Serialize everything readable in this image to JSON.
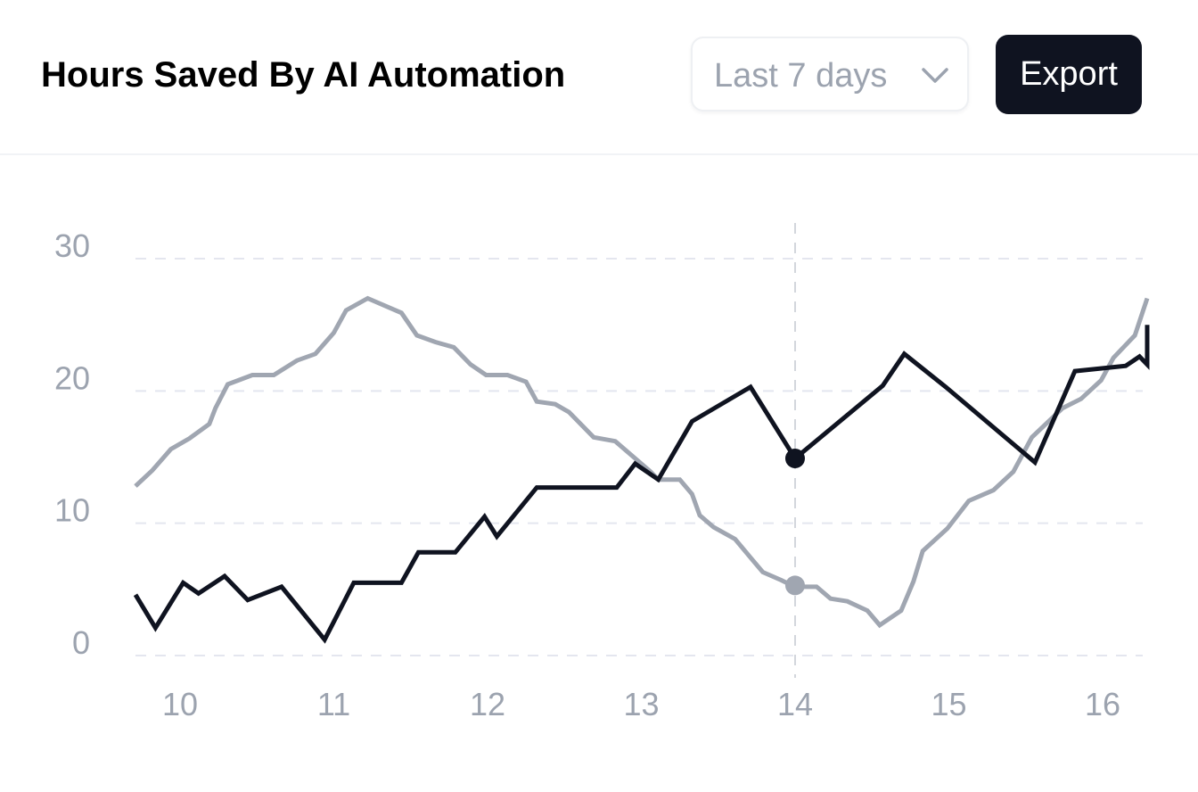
{
  "header": {
    "title": "Hours Saved By AI Automation",
    "range_select": {
      "value": "Last 7 days",
      "icon": "chevron-down-icon"
    },
    "export_label": "Export"
  },
  "colors": {
    "primary_series": "#0f1320",
    "secondary_series": "#a0a6b1",
    "gridline": "#e4e6ef",
    "tick_text": "#9ca3af",
    "button_bg": "#0f1320"
  },
  "chart_data": {
    "type": "line",
    "title": "",
    "xlabel": "",
    "ylabel": "",
    "xlim": [
      9.71,
      16.29
    ],
    "ylim": [
      0,
      30
    ],
    "x_ticks": [
      10,
      11,
      12,
      13,
      14,
      15,
      16
    ],
    "y_ticks": [
      0,
      10,
      20,
      30
    ],
    "grid": "horizontal-dashed",
    "legend": "none",
    "crosshair_x": 14,
    "series": [
      {
        "color": "#a0a6b1",
        "highlight": {
          "x": 14,
          "y": 5.3
        },
        "points": [
          [
            9.71,
            12.8
          ],
          [
            9.82,
            14.0
          ],
          [
            9.94,
            15.6
          ],
          [
            10.06,
            16.4
          ],
          [
            10.19,
            17.5
          ],
          [
            10.23,
            18.7
          ],
          [
            10.31,
            20.5
          ],
          [
            10.47,
            21.2
          ],
          [
            10.61,
            21.2
          ],
          [
            10.76,
            22.3
          ],
          [
            10.88,
            22.8
          ],
          [
            11.0,
            24.4
          ],
          [
            11.08,
            26.1
          ],
          [
            11.22,
            27.0
          ],
          [
            11.44,
            25.9
          ],
          [
            11.54,
            24.2
          ],
          [
            11.66,
            23.7
          ],
          [
            11.78,
            23.3
          ],
          [
            11.89,
            22.0
          ],
          [
            11.99,
            21.2
          ],
          [
            12.13,
            21.2
          ],
          [
            12.25,
            20.7
          ],
          [
            12.32,
            19.2
          ],
          [
            12.44,
            19.0
          ],
          [
            12.53,
            18.4
          ],
          [
            12.69,
            16.5
          ],
          [
            12.83,
            16.2
          ],
          [
            12.96,
            14.9
          ],
          [
            13.06,
            13.9
          ],
          [
            13.11,
            13.3
          ],
          [
            13.25,
            13.3
          ],
          [
            13.33,
            12.2
          ],
          [
            13.38,
            10.6
          ],
          [
            13.47,
            9.7
          ],
          [
            13.61,
            8.8
          ],
          [
            13.71,
            7.4
          ],
          [
            13.79,
            6.3
          ],
          [
            13.91,
            5.7
          ],
          [
            13.98,
            5.3
          ],
          [
            14.06,
            5.2
          ],
          [
            14.14,
            5.2
          ],
          [
            14.23,
            4.3
          ],
          [
            14.34,
            4.1
          ],
          [
            14.47,
            3.4
          ],
          [
            14.55,
            2.3
          ],
          [
            14.69,
            3.4
          ],
          [
            14.77,
            5.6
          ],
          [
            14.83,
            7.9
          ],
          [
            14.99,
            9.6
          ],
          [
            15.13,
            11.7
          ],
          [
            15.29,
            12.5
          ],
          [
            15.42,
            13.9
          ],
          [
            15.54,
            16.5
          ],
          [
            15.74,
            18.7
          ],
          [
            15.86,
            19.4
          ],
          [
            15.99,
            20.8
          ],
          [
            16.07,
            22.5
          ],
          [
            16.21,
            24.2
          ],
          [
            16.29,
            27.0
          ]
        ]
      },
      {
        "color": "#0f1320",
        "highlight": {
          "x": 14,
          "y": 14.9
        },
        "points": [
          [
            9.71,
            4.6
          ],
          [
            9.84,
            2.1
          ],
          [
            10.02,
            5.5
          ],
          [
            10.12,
            4.7
          ],
          [
            10.29,
            6.0
          ],
          [
            10.44,
            4.2
          ],
          [
            10.66,
            5.2
          ],
          [
            10.94,
            1.2
          ],
          [
            11.13,
            5.5
          ],
          [
            11.44,
            5.5
          ],
          [
            11.55,
            7.8
          ],
          [
            11.79,
            7.8
          ],
          [
            11.98,
            10.5
          ],
          [
            12.06,
            9.0
          ],
          [
            12.32,
            12.7
          ],
          [
            12.84,
            12.7
          ],
          [
            12.96,
            14.5
          ],
          [
            13.11,
            13.3
          ],
          [
            13.33,
            17.7
          ],
          [
            13.71,
            20.3
          ],
          [
            14.0,
            14.9
          ],
          [
            14.57,
            20.4
          ],
          [
            14.71,
            22.8
          ],
          [
            14.98,
            20.3
          ],
          [
            15.56,
            14.6
          ],
          [
            15.82,
            21.5
          ],
          [
            16.15,
            21.9
          ],
          [
            16.24,
            22.6
          ],
          [
            16.29,
            22.0
          ],
          [
            16.29,
            25.0
          ]
        ]
      }
    ]
  }
}
